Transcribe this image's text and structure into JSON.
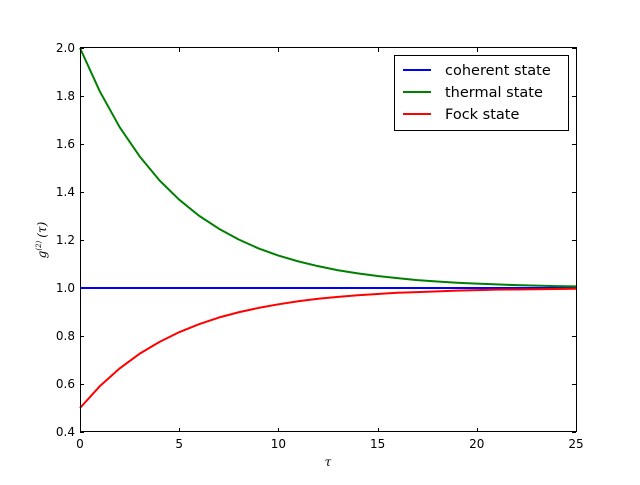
{
  "chart_data": {
    "type": "line",
    "xlabel": "τ",
    "ylabel": {
      "base": "g",
      "sup": "(2)",
      "arg": "(τ)"
    },
    "xlim": [
      0,
      25
    ],
    "ylim": [
      0.4,
      2.0
    ],
    "x_ticks": [
      0,
      5,
      10,
      15,
      20,
      25
    ],
    "y_ticks": [
      0.4,
      0.6,
      0.8,
      1.0,
      1.2,
      1.4,
      1.6,
      1.8,
      2.0
    ],
    "x_tick_labels": [
      "0",
      "5",
      "10",
      "15",
      "20",
      "25"
    ],
    "y_tick_labels": [
      "0.4",
      "0.6",
      "0.8",
      "1.0",
      "1.2",
      "1.4",
      "1.6",
      "1.8",
      "2.0"
    ],
    "grid": false,
    "legend": "top-right",
    "x": [
      0,
      1,
      2,
      3,
      4,
      5,
      6,
      7,
      8,
      9,
      10,
      11,
      12,
      13,
      14,
      15,
      16,
      17,
      18,
      19,
      20,
      21,
      22,
      23,
      24,
      25
    ],
    "series": [
      {
        "name": "coherent state",
        "color": "#0000ff",
        "values": [
          1.0,
          1.0,
          1.0,
          1.0,
          1.0,
          1.0,
          1.0,
          1.0,
          1.0,
          1.0,
          1.0,
          1.0,
          1.0,
          1.0,
          1.0,
          1.0,
          1.0,
          1.0,
          1.0,
          1.0,
          1.0,
          1.0,
          1.0,
          1.0,
          1.0,
          1.0
        ]
      },
      {
        "name": "thermal state",
        "color": "#008000",
        "values": [
          2.0,
          1.819,
          1.67,
          1.549,
          1.449,
          1.368,
          1.301,
          1.247,
          1.202,
          1.165,
          1.135,
          1.111,
          1.091,
          1.074,
          1.061,
          1.05,
          1.041,
          1.033,
          1.027,
          1.022,
          1.018,
          1.015,
          1.012,
          1.01,
          1.008,
          1.007
        ]
      },
      {
        "name": "Fock state",
        "color": "#ff0000",
        "values": [
          0.5,
          0.591,
          0.665,
          0.726,
          0.775,
          0.816,
          0.849,
          0.877,
          0.899,
          0.917,
          0.932,
          0.945,
          0.955,
          0.963,
          0.97,
          0.975,
          0.98,
          0.983,
          0.986,
          0.989,
          0.991,
          0.993,
          0.994,
          0.995,
          0.996,
          0.997
        ]
      }
    ]
  }
}
